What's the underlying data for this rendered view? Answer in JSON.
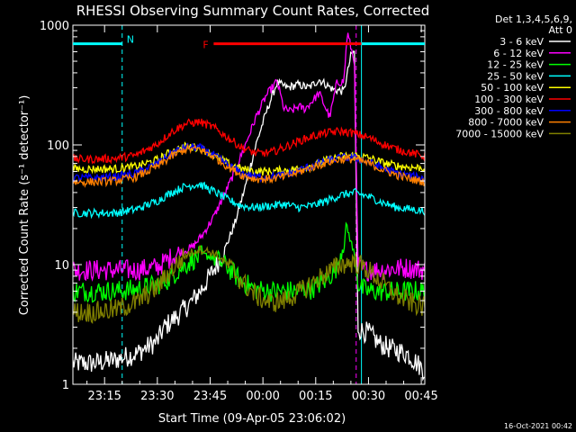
{
  "chart_data": {
    "type": "line",
    "title": "RHESSI Observing Summary Count Rates, Corrected",
    "xlabel": "Start Time (09-Apr-05 23:06:02)",
    "ylabel": "Corrected Count Rate (s⁻¹ detector⁻¹)",
    "y_scale": "log",
    "ylim": [
      1,
      1000
    ],
    "x_range_minutes": [
      0,
      100
    ],
    "x_ticks": [
      {
        "at": 9,
        "label": "23:15"
      },
      {
        "at": 24,
        "label": "23:30"
      },
      {
        "at": 39,
        "label": "23:45"
      },
      {
        "at": 54,
        "label": "00:00"
      },
      {
        "at": 69,
        "label": "00:15"
      },
      {
        "at": 84,
        "label": "00:30"
      },
      {
        "at": 99,
        "label": "00:45"
      }
    ],
    "y_ticks": [
      {
        "value": 1,
        "label": "1"
      },
      {
        "value": 10,
        "label": "10"
      },
      {
        "value": 100,
        "label": "100"
      },
      {
        "value": 1000,
        "label": "1000"
      }
    ],
    "legend": {
      "header": "Det 1,3,4,5,6,9,",
      "subheader": "Att 0",
      "placement": "right"
    },
    "series": [
      {
        "name": "3 - 6 keV",
        "color": "#ffffff",
        "x": [
          0,
          6,
          12,
          18,
          24,
          26,
          30,
          34,
          37,
          40,
          43,
          46,
          49,
          52,
          55,
          58,
          61,
          64,
          67,
          70,
          74,
          77,
          79,
          80,
          81,
          82,
          84,
          87,
          90,
          95,
          100
        ],
        "y": [
          1.5,
          1.5,
          1.6,
          1.8,
          2.3,
          3,
          3.8,
          5,
          6.5,
          9,
          13,
          22,
          45,
          100,
          190,
          330,
          300,
          320,
          300,
          350,
          290,
          280,
          560,
          600,
          3,
          2.8,
          2.7,
          2.2,
          2,
          1.8,
          1.3
        ]
      },
      {
        "name": "6 - 12 keV",
        "color": "#ff00ff",
        "x": [
          0,
          6,
          12,
          18,
          24,
          27,
          30,
          34,
          37,
          40,
          43,
          46,
          49,
          52,
          55,
          58,
          60,
          62,
          64,
          66,
          70,
          73,
          75,
          77,
          78,
          79,
          80,
          81,
          82,
          84,
          87,
          90,
          95,
          100
        ],
        "y": [
          9,
          9,
          9,
          9,
          9.5,
          11,
          12.5,
          14,
          18,
          25,
          38,
          60,
          100,
          170,
          260,
          340,
          200,
          190,
          210,
          200,
          270,
          170,
          330,
          340,
          870,
          650,
          500,
          10,
          9,
          9,
          9,
          9.2,
          9.4,
          9
        ]
      },
      {
        "name": "12 - 25 keV",
        "color": "#00ff00",
        "x": [
          0,
          6,
          12,
          18,
          24,
          27,
          30,
          34,
          37,
          40,
          44,
          48,
          52,
          56,
          60,
          64,
          68,
          72,
          75,
          78,
          80,
          81,
          82,
          84,
          88,
          92,
          96,
          100
        ],
        "y": [
          6,
          6,
          6,
          6.2,
          6.8,
          7.5,
          9,
          11,
          12,
          11.5,
          9.5,
          7.2,
          6.2,
          6,
          6,
          6,
          6.3,
          7.4,
          9.5,
          20,
          12,
          7,
          6.3,
          6,
          6,
          5.9,
          6,
          6
        ]
      },
      {
        "name": "25 - 50 keV",
        "color": "#00ffff",
        "x": [
          0,
          6,
          12,
          18,
          24,
          28,
          32,
          36,
          40,
          44,
          48,
          52,
          56,
          60,
          64,
          68,
          72,
          76,
          80,
          84,
          88,
          92,
          96,
          100
        ],
        "y": [
          27,
          27,
          27,
          29,
          34,
          40,
          45,
          47,
          41,
          35,
          31,
          30,
          31,
          32,
          30,
          31,
          34,
          38,
          40,
          37,
          33,
          30,
          29,
          28
        ]
      },
      {
        "name": "50 - 100 keV",
        "color": "#ffff00",
        "x": [
          0,
          6,
          12,
          18,
          24,
          28,
          32,
          36,
          40,
          44,
          48,
          52,
          56,
          60,
          64,
          68,
          72,
          76,
          80,
          84,
          88,
          92,
          96,
          100
        ],
        "y": [
          63,
          63,
          63,
          66,
          75,
          88,
          97,
          95,
          82,
          70,
          63,
          60,
          60,
          61,
          63,
          67,
          74,
          80,
          82,
          78,
          71,
          67,
          65,
          64
        ]
      },
      {
        "name": "100 - 300 keV",
        "color": "#ff0000",
        "x": [
          0,
          6,
          12,
          18,
          24,
          28,
          32,
          36,
          40,
          44,
          48,
          52,
          56,
          60,
          64,
          68,
          72,
          76,
          80,
          84,
          88,
          92,
          96,
          100
        ],
        "y": [
          76,
          76,
          77,
          82,
          102,
          128,
          150,
          156,
          140,
          115,
          95,
          85,
          86,
          95,
          107,
          118,
          126,
          130,
          125,
          115,
          102,
          92,
          86,
          80
        ]
      },
      {
        "name": "300 - 800 keV",
        "color": "#0000ff",
        "x": [
          0,
          6,
          12,
          18,
          24,
          28,
          32,
          36,
          40,
          44,
          48,
          52,
          56,
          60,
          64,
          68,
          72,
          76,
          80,
          84,
          88,
          92,
          96,
          100
        ],
        "y": [
          53,
          53,
          54,
          58,
          70,
          85,
          96,
          95,
          82,
          68,
          58,
          54,
          54,
          56,
          61,
          67,
          73,
          78,
          78,
          72,
          64,
          58,
          55,
          52
        ]
      },
      {
        "name": "800 - 7000 keV",
        "color": "#ff8000",
        "x": [
          0,
          6,
          12,
          18,
          24,
          28,
          32,
          36,
          40,
          44,
          48,
          52,
          56,
          60,
          64,
          68,
          72,
          76,
          80,
          84,
          88,
          92,
          96,
          100
        ],
        "y": [
          49,
          49,
          50,
          54,
          66,
          80,
          92,
          92,
          80,
          66,
          56,
          52,
          52,
          54,
          59,
          65,
          71,
          76,
          76,
          70,
          62,
          56,
          52,
          49
        ]
      },
      {
        "name": "7000 - 15000 keV",
        "color": "#808000",
        "x": [
          0,
          6,
          12,
          18,
          24,
          28,
          32,
          36,
          40,
          44,
          48,
          52,
          56,
          60,
          64,
          68,
          72,
          76,
          80,
          84,
          88,
          92,
          96,
          100
        ],
        "y": [
          4,
          4,
          4.2,
          4.8,
          6.5,
          9,
          12,
          13.5,
          12.5,
          10,
          7.2,
          5.5,
          4.8,
          5,
          5.8,
          7,
          8.5,
          10,
          10.5,
          9,
          7,
          5.5,
          4.8,
          4.4
        ]
      }
    ],
    "annotations": [
      {
        "label": "N",
        "color": "#00ffff",
        "x_start": 0,
        "x_end": 14,
        "y": 700
      },
      {
        "label": "F",
        "color": "#ff0000",
        "x_start": 40,
        "x_end": 82,
        "y": 700
      },
      {
        "label": "",
        "color": "#00ffff",
        "x_start": 82,
        "x_end": 100,
        "y": 700
      }
    ],
    "vertical_markers": [
      {
        "x": 0,
        "color": "#00ffff"
      },
      {
        "x": 14,
        "color": "#00ffff"
      },
      {
        "x": 80.5,
        "color": "#ff00ff"
      },
      {
        "x": 82,
        "color": "#00ffff"
      },
      {
        "x": 100,
        "color": "#00ffff"
      }
    ]
  },
  "footer": {
    "timestamp": "16-Oct-2021 00:42"
  }
}
